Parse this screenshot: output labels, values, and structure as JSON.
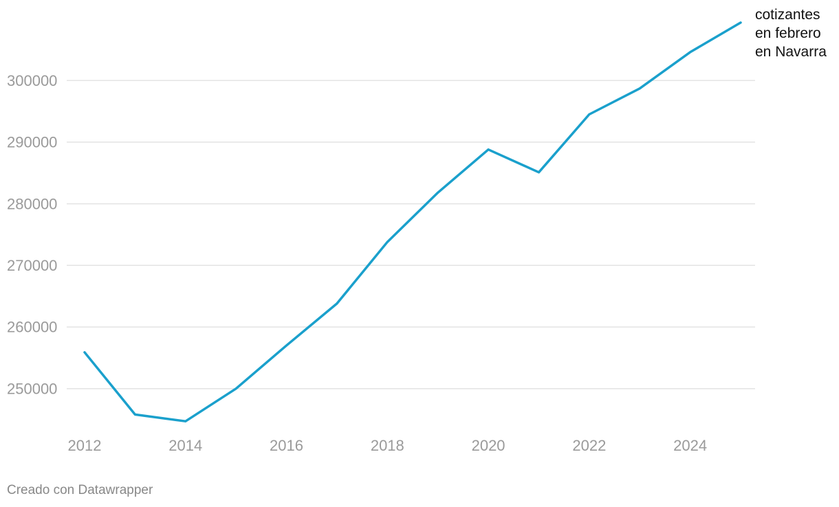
{
  "chart_data": {
    "type": "line",
    "x": [
      2012,
      2013,
      2014,
      2015,
      2016,
      2017,
      2018,
      2019,
      2020,
      2021,
      2022,
      2023,
      2024,
      2025
    ],
    "series": [
      {
        "name": "cotizantes en febrero en Navarra",
        "values": [
          255900,
          245800,
          244700,
          250000,
          257000,
          263800,
          273800,
          281800,
          288800,
          285100,
          294500,
          298700,
          304600,
          309400
        ]
      }
    ],
    "x_ticks": [
      "2012",
      "2014",
      "2016",
      "2018",
      "2020",
      "2022",
      "2024"
    ],
    "y_ticks": [
      "250000",
      "260000",
      "270000",
      "280000",
      "290000",
      "300000"
    ],
    "ylim": [
      243500,
      310500
    ],
    "xlim": [
      2012,
      2025
    ],
    "grid": "horizontal",
    "line_color": "#1aa0cc",
    "title": "",
    "xlabel": "",
    "ylabel": ""
  },
  "footer": {
    "credit": "Creado con Datawrapper"
  }
}
